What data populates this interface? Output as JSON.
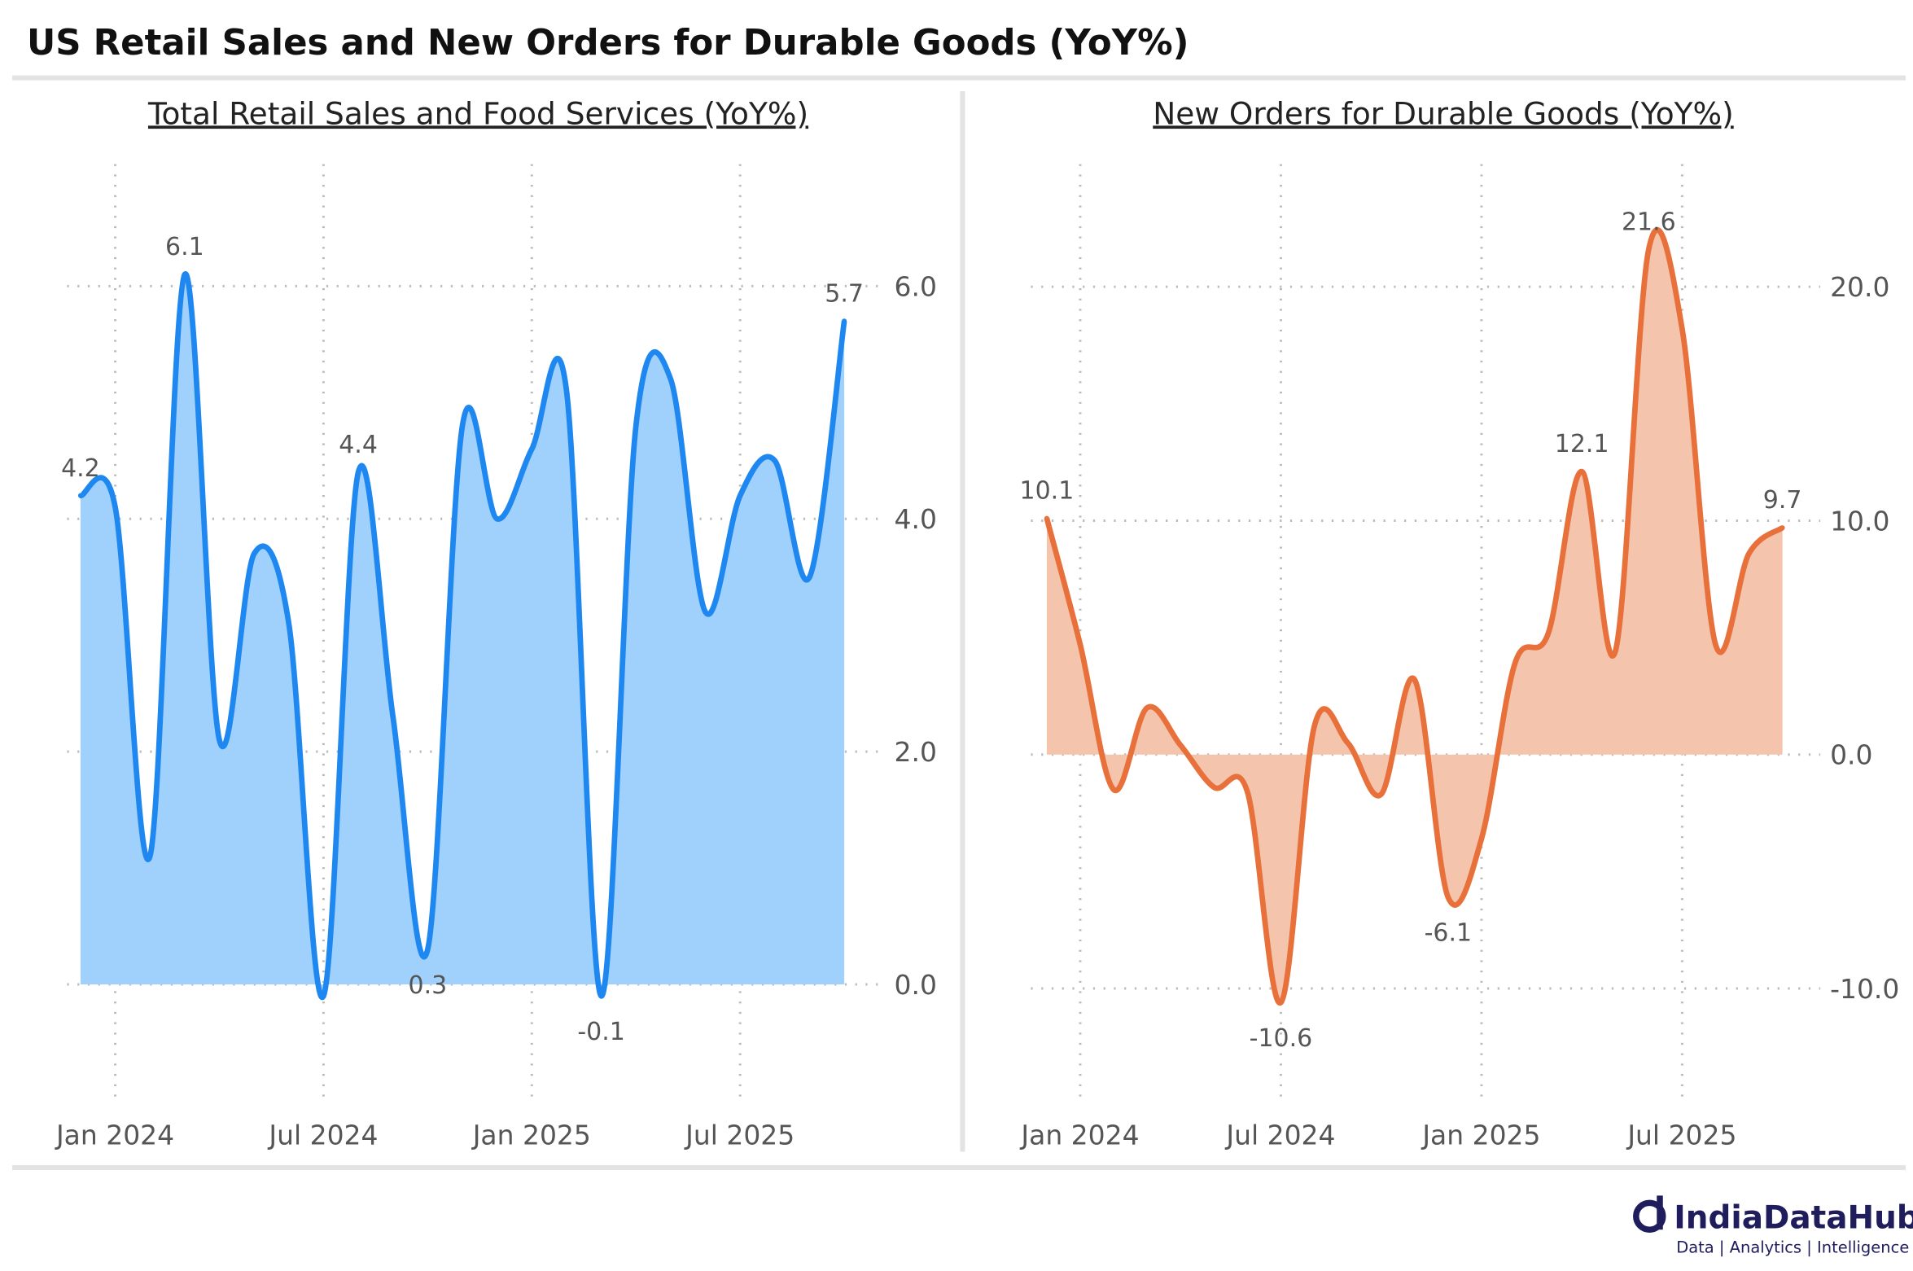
{
  "title": "US Retail Sales and New Orders for Durable Goods (YoY%)",
  "chart_data": [
    {
      "type": "area",
      "title": "Total Retail Sales and Food Services (YoY%)",
      "categories": [
        null,
        "Jan 2024",
        null,
        null,
        null,
        null,
        null,
        "Jul 2024",
        null,
        null,
        null,
        null,
        null,
        "Jan 2025",
        null,
        null,
        null,
        null,
        null,
        "Jul 2025",
        null,
        null,
        null
      ],
      "values": [
        4.2,
        4.1,
        1.1,
        6.1,
        2.1,
        3.7,
        3.1,
        -0.1,
        4.4,
        2.3,
        0.3,
        4.8,
        4.0,
        4.6,
        5.1,
        -0.1,
        4.8,
        5.2,
        3.2,
        4.2,
        4.5,
        3.5,
        5.7
      ],
      "value_labels": [
        "4.2",
        null,
        null,
        "6.1",
        null,
        null,
        null,
        null,
        "4.4",
        null,
        "0.3",
        null,
        null,
        null,
        null,
        "-0.1",
        null,
        null,
        null,
        null,
        null,
        null,
        "5.7"
      ],
      "color": "#1e88f0",
      "fill_color": "#a0d0fc",
      "ylim": [
        -1.0,
        7.1
      ],
      "yticks": [
        {
          "value": 0,
          "label": "0.0"
        },
        {
          "value": 2,
          "label": "2.0"
        },
        {
          "value": 4,
          "label": "4.0"
        },
        {
          "value": 6,
          "label": "6.0"
        }
      ],
      "grid": true
    },
    {
      "type": "area",
      "title": "New Orders for Durable Goods (YoY%)",
      "categories": [
        null,
        "Jan 2024",
        null,
        null,
        null,
        null,
        null,
        "Jul 2024",
        null,
        null,
        null,
        null,
        null,
        "Jan 2025",
        null,
        null,
        null,
        null,
        null,
        "Jul 2025",
        null,
        null,
        null
      ],
      "values": [
        10.1,
        4.7,
        -1.5,
        2.0,
        0.4,
        -1.4,
        -1.6,
        -10.6,
        1.2,
        0.5,
        -1.7,
        3.2,
        -6.1,
        -3.6,
        3.9,
        5.2,
        12.1,
        4.4,
        21.6,
        18.2,
        4.7,
        8.6,
        9.7
      ],
      "value_labels": [
        "10.1",
        null,
        null,
        null,
        null,
        null,
        null,
        "-10.6",
        null,
        null,
        null,
        null,
        "-6.1",
        null,
        null,
        null,
        "12.1",
        null,
        "21.6",
        null,
        null,
        null,
        "9.7"
      ],
      "color": "#e8703a",
      "fill_color": "#f4c4ac",
      "ylim": [
        -14.8,
        25.5
      ],
      "yticks": [
        {
          "value": -10,
          "label": "-10.0"
        },
        {
          "value": 0,
          "label": "0.0"
        },
        {
          "value": 10,
          "label": "10.0"
        },
        {
          "value": 20,
          "label": "20.0"
        }
      ],
      "grid": true
    }
  ],
  "footer": {
    "brand": "IndiaDataHub",
    "tagline": "Data | Analytics | Intelligence"
  }
}
